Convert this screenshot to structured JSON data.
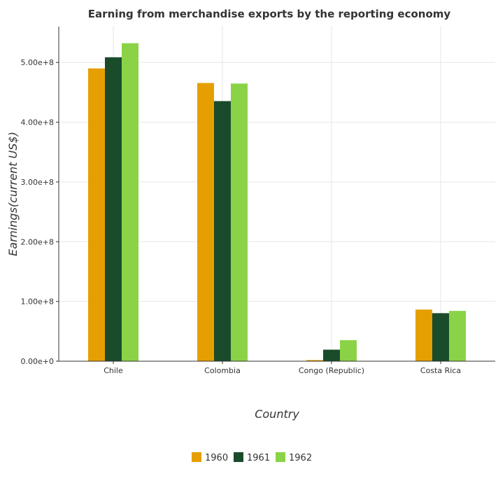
{
  "chart_data": {
    "type": "bar",
    "title": "Earning from merchandise exports by the reporting economy",
    "xlabel": "Country",
    "ylabel": "Earnings(current US$)",
    "categories": [
      "Chile",
      "Colombia",
      "Congo (Republic)",
      "Costa Rica"
    ],
    "series": [
      {
        "name": "1960",
        "color": "#e69f00",
        "values": [
          490000000,
          465600000,
          1900000,
          86400000
        ]
      },
      {
        "name": "1961",
        "color": "#1a4c2b",
        "values": [
          508700000,
          435300000,
          19300000,
          80400000
        ]
      },
      {
        "name": "1962",
        "color": "#8bd346",
        "values": [
          532200000,
          464700000,
          35200000,
          84200000
        ]
      }
    ],
    "ylim": [
      0,
      560000000
    ],
    "yticks": [
      0,
      100000000,
      200000000,
      300000000,
      400000000,
      500000000
    ],
    "ytick_labels": [
      "0.00e+0",
      "1.00e+8",
      "2.00e+8",
      "3.00e+8",
      "4.00e+8",
      "5.00e+8"
    ],
    "grid": true,
    "legend_position": "bottom"
  }
}
